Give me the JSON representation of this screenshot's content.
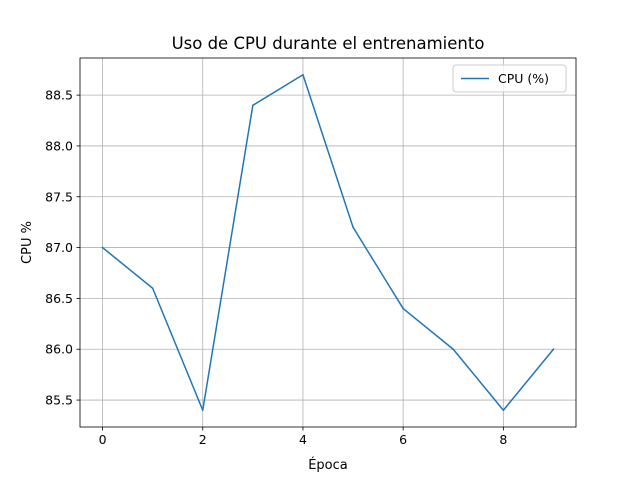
{
  "chart_data": {
    "type": "line",
    "title": "Uso de CPU durante el entrenamiento",
    "xlabel": "Época",
    "ylabel": "CPU %",
    "x": [
      0,
      1,
      2,
      3,
      4,
      5,
      6,
      7,
      8,
      9
    ],
    "series": [
      {
        "name": "CPU (%)",
        "color": "#1f77b4",
        "values": [
          87.0,
          86.6,
          85.4,
          88.4,
          88.7,
          87.2,
          86.4,
          86.0,
          85.4,
          86.0
        ]
      }
    ],
    "xlim": [
      -0.45,
      9.45
    ],
    "ylim": [
      85.235,
      88.865
    ],
    "xticks": [
      0,
      2,
      4,
      6,
      8
    ],
    "xtick_labels": [
      "0",
      "2",
      "4",
      "6",
      "8"
    ],
    "yticks": [
      85.5,
      86.0,
      86.5,
      87.0,
      87.5,
      88.0,
      88.5
    ],
    "ytick_labels": [
      "85.5",
      "86.0",
      "86.5",
      "87.0",
      "87.5",
      "88.0",
      "88.5"
    ],
    "grid": true,
    "legend_position": "top-right"
  }
}
